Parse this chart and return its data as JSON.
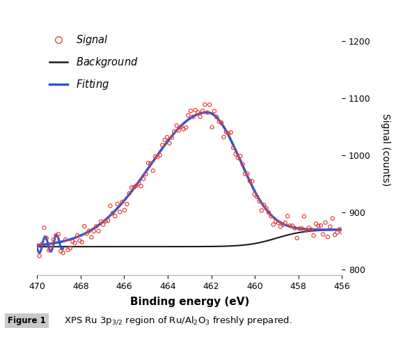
{
  "xlabel": "Binding energy (eV)",
  "ylabel": "Signal (counts)",
  "xlim": [
    470,
    456
  ],
  "ylim": [
    790,
    1230
  ],
  "yticks": [
    800,
    900,
    1000,
    1100,
    1200
  ],
  "xticks": [
    470,
    468,
    466,
    464,
    462,
    460,
    458,
    456
  ],
  "border_color": "#d4a843",
  "signal_color": "#e8453c",
  "background_line_color": "#1a1a1a",
  "fitting_color": "#3355cc",
  "legend_labels": [
    "Signal",
    "Background",
    "Fitting"
  ]
}
